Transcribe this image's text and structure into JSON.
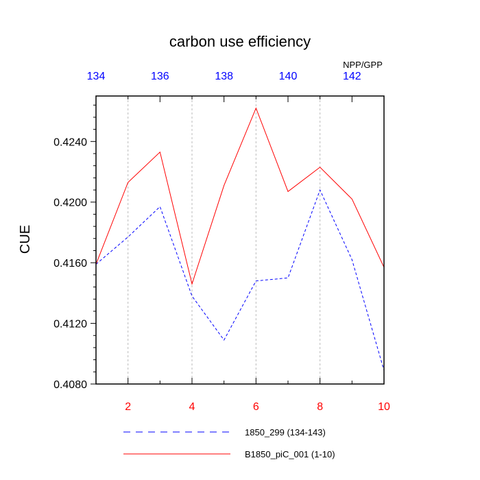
{
  "chart_data": {
    "type": "line",
    "title": "carbon use efficiency",
    "ylabel": "CUE",
    "corner_label": "NPP/GPP",
    "xlim": [
      1,
      10
    ],
    "ylim": [
      0.408,
      0.427
    ],
    "x": [
      1,
      2,
      3,
      4,
      5,
      6,
      7,
      8,
      9,
      10
    ],
    "bottom_ticks": [
      "2",
      "4",
      "6",
      "8",
      "10"
    ],
    "top_ticks": [
      "134",
      "136",
      "138",
      "140",
      "142"
    ],
    "y_ticks": [
      "0.4080",
      "0.4120",
      "0.4160",
      "0.4200",
      "0.4240"
    ],
    "grid": "vertical dashed at major x ticks",
    "legend_position": "bottom",
    "series": [
      {
        "name": "1850_299 (134-143)",
        "color": "#0000ff",
        "style": "dashed",
        "axis": "top",
        "values": [
          0.4159,
          0.4177,
          0.4197,
          0.4138,
          0.4109,
          0.4148,
          0.415,
          0.4208,
          0.4162,
          0.4089
        ]
      },
      {
        "name": "B1850_piC_001 (1-10)",
        "color": "#ff0000",
        "style": "solid",
        "axis": "bottom",
        "values": [
          0.4159,
          0.4213,
          0.4233,
          0.4146,
          0.4211,
          0.4262,
          0.4207,
          0.4223,
          0.4202,
          0.4157
        ]
      }
    ]
  },
  "colors": {
    "bottom_axis_labels": "#ff0000",
    "top_axis_labels": "#0000ff",
    "grid": "#bbbbbb",
    "frame": "#000000"
  }
}
